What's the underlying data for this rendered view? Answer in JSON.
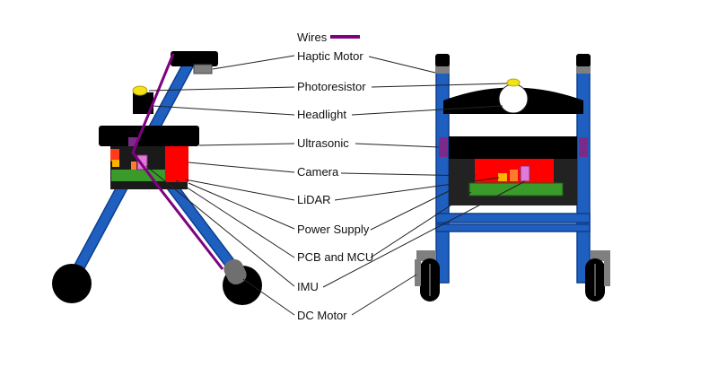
{
  "legend": {
    "label": "Wires",
    "color": "#800080"
  },
  "labels": {
    "haptic_motor": "Haptic Motor",
    "photoresistor": "Photoresistor",
    "headlight": "Headlight",
    "ultrasonic": "Ultrasonic",
    "camera": "Camera",
    "lidar": "LiDAR",
    "power_supply": "Power Supply",
    "pcb_mcu": "PCB and MCU",
    "imu": "IMU",
    "dc_motor": "DC Motor"
  },
  "colors": {
    "frame": "#1f5fbf",
    "black": "#000000",
    "camera": "#ff0000",
    "pcb": "#3a9a2a",
    "imu": "#e07ad8",
    "ultrasonic": "#7b2a8a",
    "photoresistor": "#f2e21a",
    "lidar": "#ffb300",
    "gray": "#7f7f7f"
  }
}
